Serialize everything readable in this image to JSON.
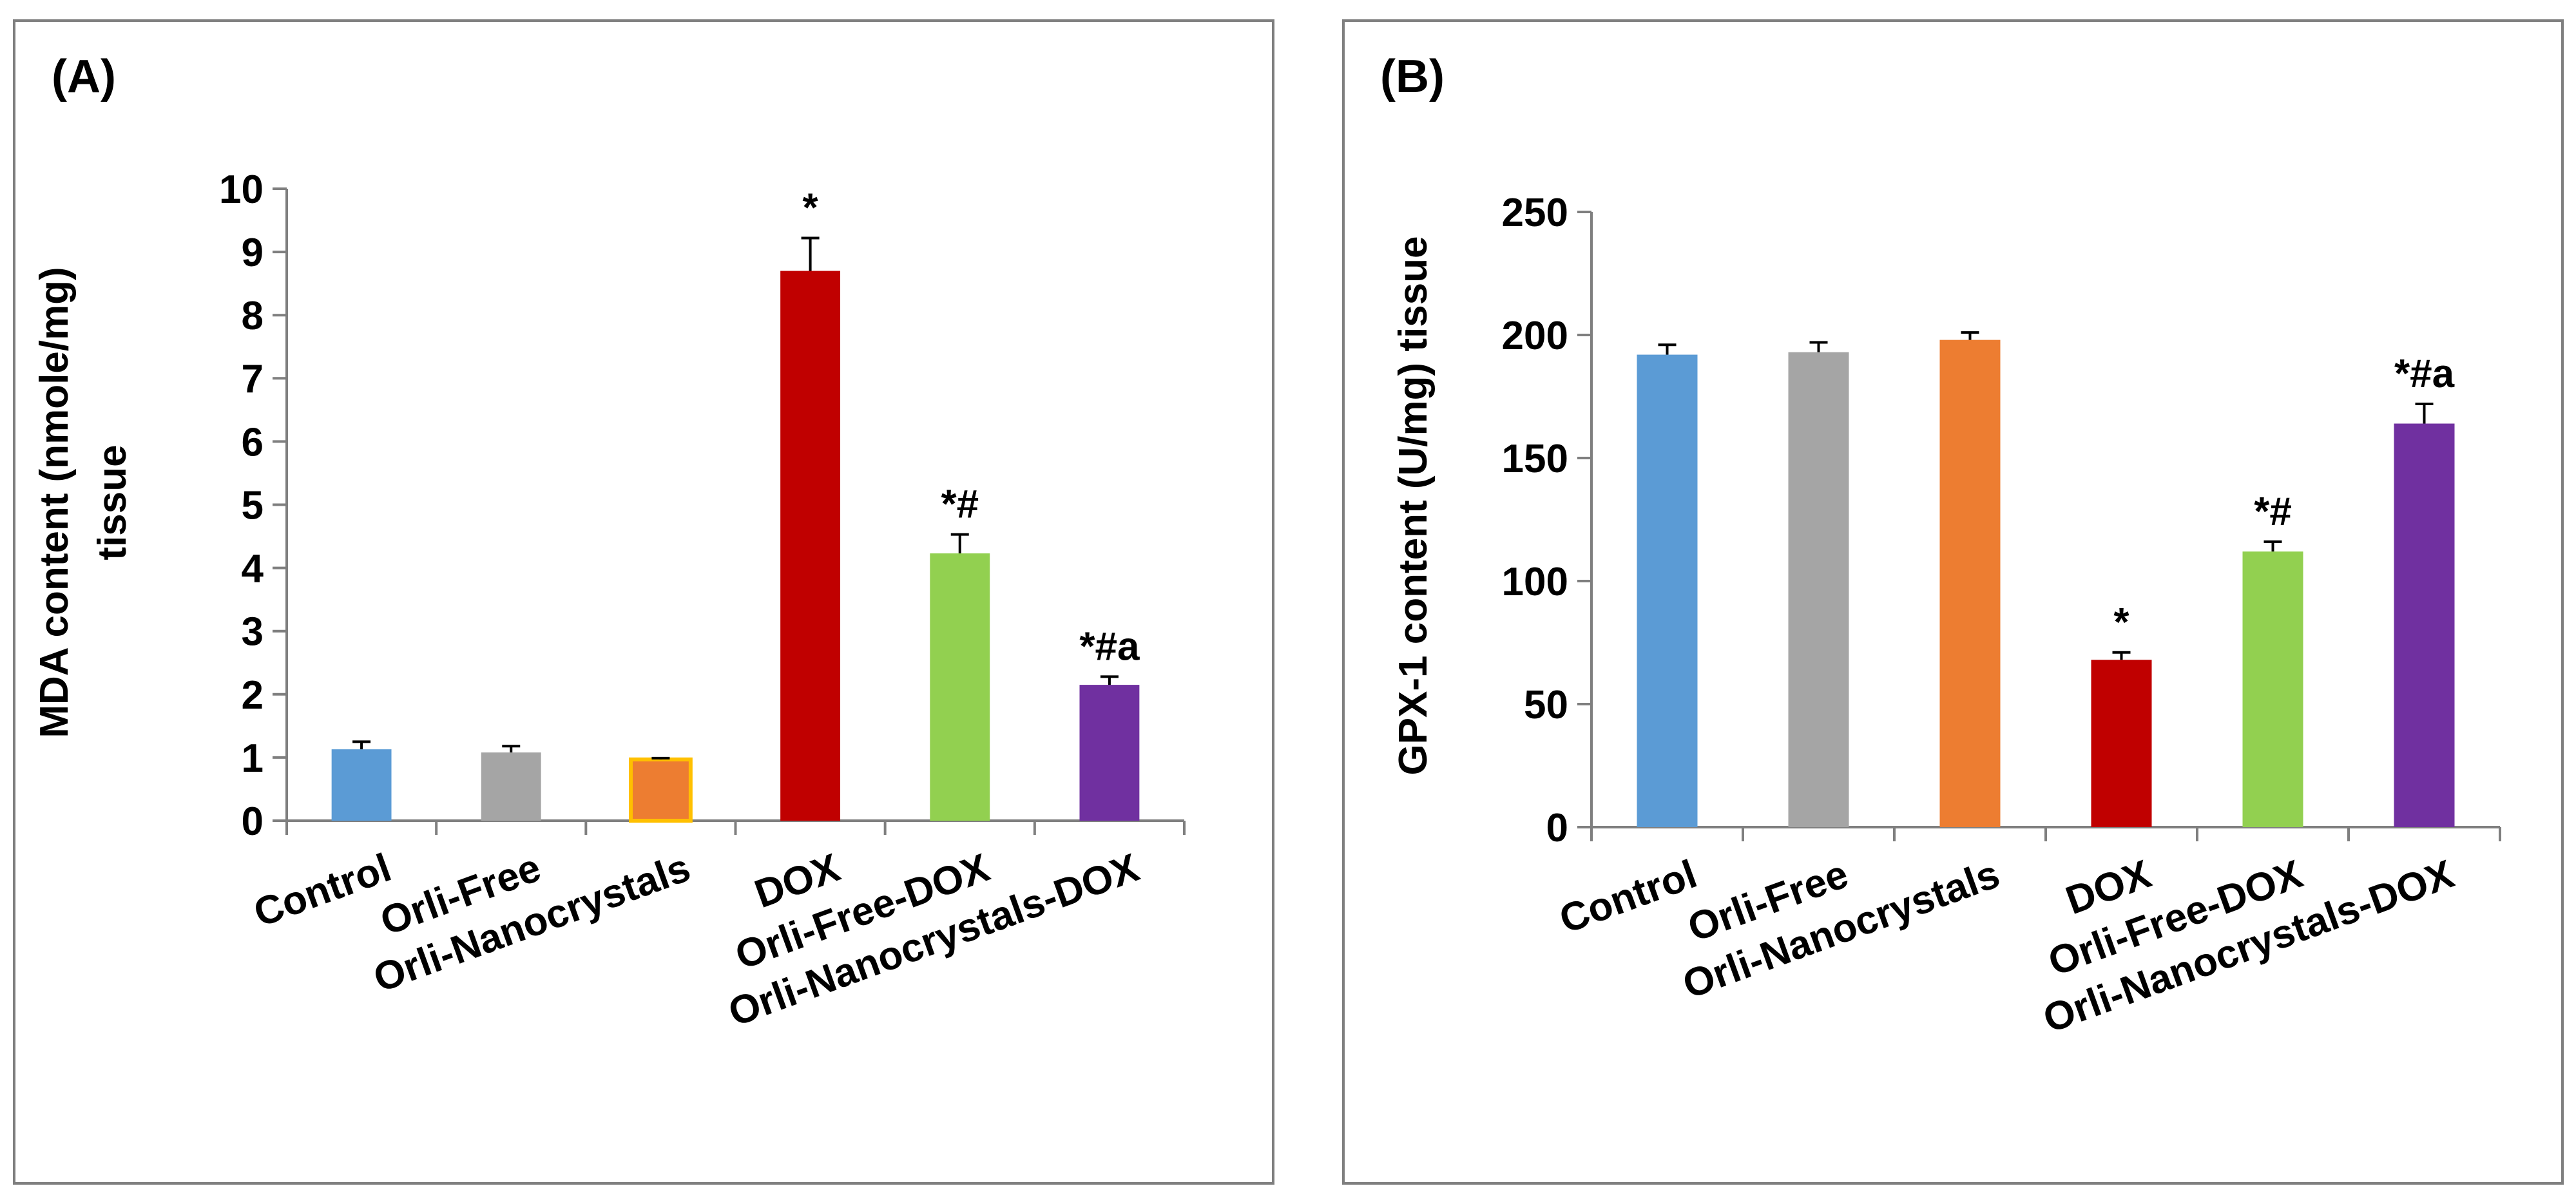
{
  "chart_data": [
    {
      "type": "bar",
      "panel_label": "(A)",
      "title": "",
      "xlabel": "",
      "ylabel_lines": [
        "MDA content (nmole/mg)",
        "tissue"
      ],
      "ylim": [
        0,
        10
      ],
      "yticks": [
        0,
        1,
        2,
        3,
        4,
        5,
        6,
        7,
        8,
        9,
        10
      ],
      "categories": [
        "Control",
        "Orli-Free",
        "Orli-Nanocrystals",
        "DOX",
        "Orli-Free-DOX",
        "Orli-Nanocrystals-DOX"
      ],
      "values": [
        1.13,
        1.08,
        0.97,
        8.7,
        4.23,
        2.15
      ],
      "errors": [
        0.12,
        0.1,
        0.02,
        0.52,
        0.3,
        0.13
      ],
      "significance": [
        "",
        "",
        "",
        "*",
        "*#",
        "*#a"
      ],
      "colors": [
        "#5b9bd5",
        "#a5a5a5",
        "#ed7d31",
        "#c00000",
        "#92d050",
        "#7030a0"
      ],
      "outline_colors": [
        "",
        "",
        "#ffc000",
        "",
        "",
        ""
      ],
      "grid": false,
      "legend": "none"
    },
    {
      "type": "bar",
      "panel_label": "(B)",
      "title": "",
      "xlabel": "",
      "ylabel_lines": [
        "GPX-1 content (U/mg) tissue"
      ],
      "ylim": [
        0,
        250
      ],
      "yticks": [
        0,
        50,
        100,
        150,
        200,
        250
      ],
      "categories": [
        "Control",
        "Orli-Free",
        "Orli-Nanocrystals",
        "DOX",
        "Orli-Free-DOX",
        "Orli-Nanocrystals-DOX"
      ],
      "values": [
        192,
        193,
        198,
        68,
        112,
        164
      ],
      "errors": [
        4,
        4,
        3,
        3,
        4,
        8
      ],
      "significance": [
        "",
        "",
        "",
        "*",
        "*#",
        "*#a"
      ],
      "colors": [
        "#5b9bd5",
        "#a5a5a5",
        "#ed7d31",
        "#c00000",
        "#92d050",
        "#7030a0"
      ],
      "outline_colors": [
        "",
        "",
        "",
        "",
        "",
        ""
      ],
      "grid": false,
      "legend": "none"
    }
  ]
}
